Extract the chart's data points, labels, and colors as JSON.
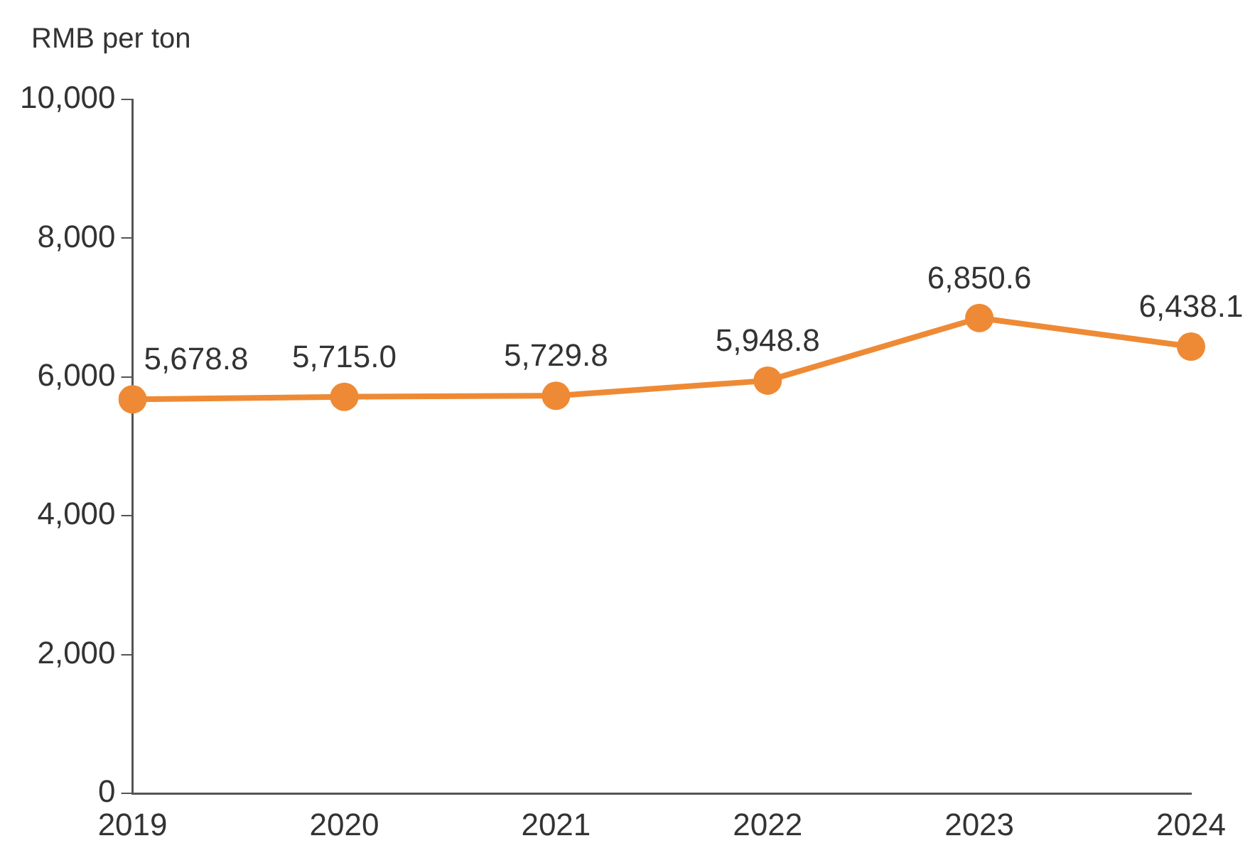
{
  "chart_data": {
    "type": "line",
    "ylabel": "RMB per ton",
    "categories": [
      "2019",
      "2020",
      "2021",
      "2022",
      "2023",
      "2024"
    ],
    "series": [
      {
        "color": "#ee8a35",
        "values": [
          5678.8,
          5715.0,
          5729.8,
          5948.8,
          6850.6,
          6438.1
        ],
        "value_labels": [
          "5,678.8",
          "5,715.0",
          "5,729.8",
          "5,948.8",
          "6,850.6",
          "6,438.1"
        ]
      }
    ],
    "ylim": [
      0,
      10000
    ],
    "yticks": [
      {
        "value": 0,
        "label": "0"
      },
      {
        "value": 2000,
        "label": "2,000"
      },
      {
        "value": 4000,
        "label": "4,000"
      },
      {
        "value": 6000,
        "label": "6,000"
      },
      {
        "value": 8000,
        "label": "8,000"
      },
      {
        "value": 10000,
        "label": "10,000"
      }
    ],
    "grid": false,
    "legend": false,
    "marker": "circle",
    "line_style": "solid"
  }
}
